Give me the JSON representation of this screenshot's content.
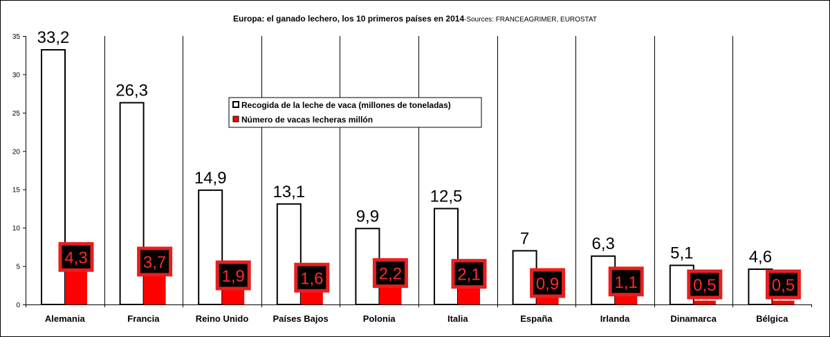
{
  "chart_data": {
    "type": "bar",
    "title": "Europa: el ganado lechero, los 10 primeros países en 2014",
    "subtitle": "-Sources: FRANCEAGRIMER, EUROSTAT",
    "categories": [
      "Alemania",
      "Francia",
      "Reino Unido",
      "Países Bajos",
      "Polonia",
      "Italia",
      "España",
      "Irlanda",
      "Dinamarca",
      "Bélgica"
    ],
    "series": [
      {
        "name": "Recogida de la leche de vaca (millones de toneladas)",
        "values": [
          33.2,
          26.3,
          14.9,
          13.1,
          9.9,
          12.5,
          7,
          6.3,
          5.1,
          4.6
        ],
        "labels": [
          "33,2",
          "26,3",
          "14,9",
          "13,1",
          "9,9",
          "12,5",
          "7",
          "6,3",
          "5,1",
          "4,6"
        ],
        "color": "#ffffff"
      },
      {
        "name": "Número de vacas lecheras millón",
        "values": [
          4.3,
          3.7,
          1.9,
          1.6,
          2.2,
          2.1,
          0.9,
          1.1,
          0.5,
          0.5
        ],
        "labels": [
          "4,3",
          "3,7",
          "1,9",
          "1,6",
          "2,2",
          "2,1",
          "0,9",
          "1,1",
          "0,5",
          "0,5"
        ],
        "color": "#ff0000"
      }
    ],
    "ylim": [
      0,
      35
    ],
    "yticks": [
      "0",
      "5",
      "10",
      "15",
      "20",
      "25",
      "30",
      "35"
    ],
    "legend_position": "center",
    "grid": "vertical category separators"
  }
}
